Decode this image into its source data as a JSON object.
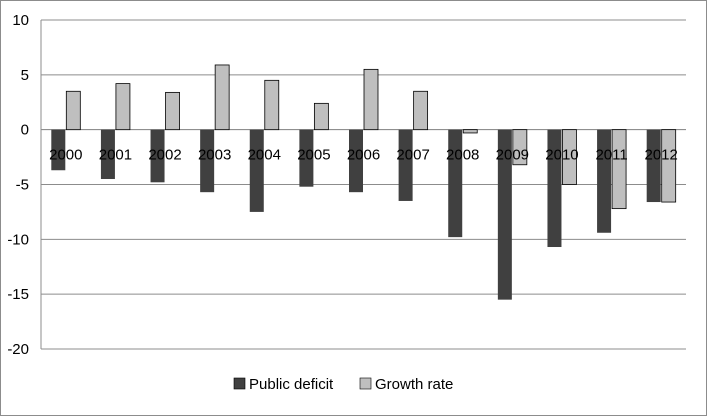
{
  "chart_data": {
    "type": "bar",
    "categories": [
      "2000",
      "2001",
      "2002",
      "2003",
      "2004",
      "2005",
      "2006",
      "2007",
      "2008",
      "2009",
      "2010",
      "2011",
      "2012"
    ],
    "series": [
      {
        "name": "Public deficit",
        "color": "#404040",
        "values": [
          -3.7,
          -4.5,
          -4.8,
          -5.7,
          -7.5,
          -5.2,
          -5.7,
          -6.5,
          -9.8,
          -15.5,
          -10.7,
          -9.4,
          -6.6
        ]
      },
      {
        "name": "Growth rate",
        "color": "#bfbfbf",
        "values": [
          3.5,
          4.2,
          3.4,
          5.9,
          4.5,
          2.4,
          5.5,
          3.5,
          -0.3,
          -3.2,
          -5.0,
          -7.2,
          -6.6
        ]
      }
    ],
    "yticks": [
      10,
      5,
      0,
      -5,
      -10,
      -15,
      -20
    ],
    "ylim": [
      -20,
      10
    ],
    "grid": true,
    "legend": "bottom",
    "title": "",
    "xlabel": "",
    "ylabel": ""
  }
}
